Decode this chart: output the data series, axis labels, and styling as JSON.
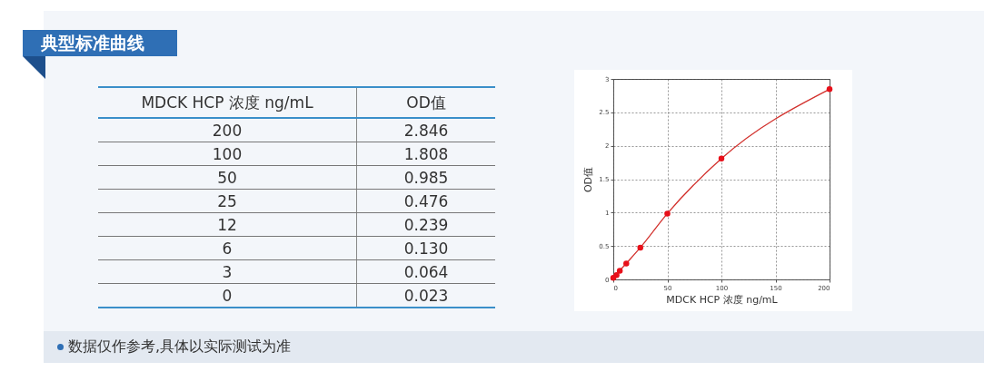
{
  "chart_data": [
    {
      "type": "other",
      "title": "典型标准曲线",
      "xlabel": "MDCK HCP 浓度 ng/mL",
      "ylabel": "OD值",
      "categories": [
        "200",
        "100",
        "50",
        "25",
        "12",
        "6",
        "3",
        "0"
      ],
      "value_labels": [
        "2.846",
        "1.808",
        "0.985",
        "0.476",
        "0.239",
        "0.130",
        "0.064",
        "0.023"
      ],
      "annotations": [
        "数据仅作参考,具体以实际测试为准"
      ]
    },
    {
      "type": "scatter",
      "xlabel": "MDCK HCP 浓度 ng/mL",
      "ylabel": "OD值",
      "x": [
        200,
        100,
        50,
        25,
        12,
        6,
        3,
        0
      ],
      "series": [
        {
          "type": "scatter",
          "color": "#e8101a",
          "values": [
            2.846,
            1.808,
            0.985,
            0.476,
            0.239,
            0.13,
            0.064,
            0.023
          ]
        },
        {
          "type": "line",
          "color": "#d2302c",
          "line_style": "solid",
          "marker": "none",
          "values": [
            2.846,
            1.808,
            0.985,
            0.476,
            0.239,
            0.13,
            0.064,
            0.023
          ]
        }
      ],
      "xlim": [
        0,
        200
      ],
      "xticks": [
        0,
        50,
        100,
        150,
        200
      ],
      "ylim": [
        0,
        3
      ],
      "yticks": [
        0,
        0.5,
        1,
        1.5,
        2,
        2.5,
        3
      ],
      "grid": true,
      "marker": "circle"
    }
  ]
}
